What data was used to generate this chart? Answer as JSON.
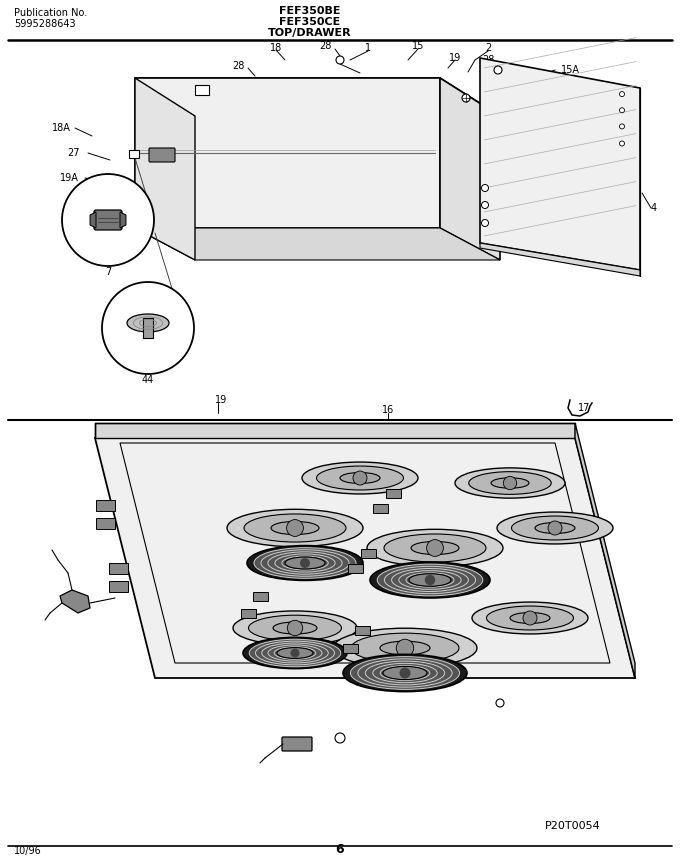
{
  "title_left_line1": "Publication No.",
  "title_left_line2": "5995288643",
  "title_center_line1": "FEF350BE",
  "title_center_line2": "FEF350CE",
  "title_center_line3": "TOP/DRAWER",
  "footer_left": "10/96",
  "footer_center": "6",
  "watermark": "P20T0054",
  "bg_color": "#ffffff",
  "fig_width": 6.8,
  "fig_height": 8.68,
  "dpi": 100
}
